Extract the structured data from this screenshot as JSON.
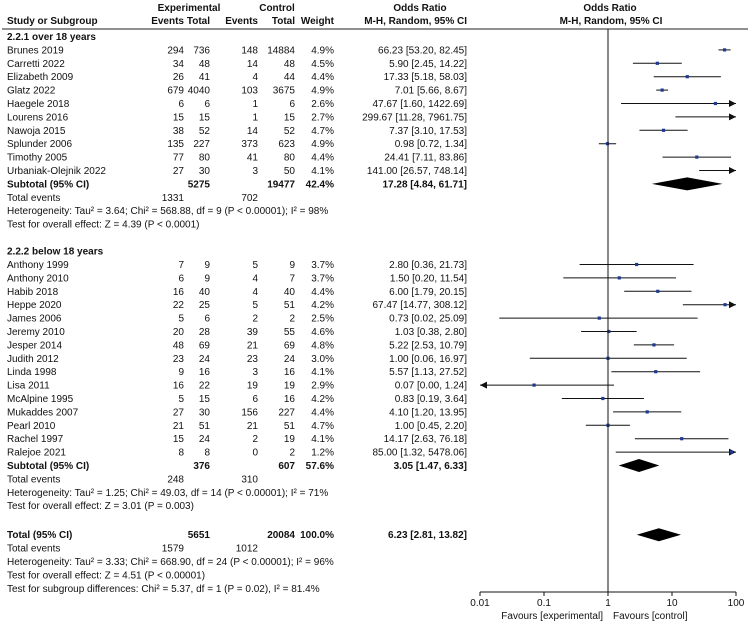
{
  "chart_data": {
    "type": "forest",
    "scale": "log",
    "xlim": [
      0.01,
      100
    ],
    "ticks": [
      "0.01",
      "0.1",
      "1",
      "10",
      "100"
    ],
    "header": {
      "group1": "Experimental",
      "group2": "Control",
      "odds_ratio_col": "Odds Ratio",
      "odds_ratio_plot": "Odds Ratio",
      "study": "Study or Subgroup",
      "events1": "Events",
      "total1": "Total",
      "events2": "Events",
      "total2": "Total",
      "weight": "Weight",
      "method_col": "M-H, Random, 95% CI",
      "method_plot": "M-H, Random, 95% CI"
    },
    "favours_left": "Favours [experimental]",
    "favours_right": "Favours [control]",
    "subgroups": [
      {
        "title": "2.2.1 over 18 years",
        "studies": [
          {
            "name": "Brunes 2019",
            "e1": "294",
            "n1": "736",
            "e2": "148",
            "n2": "14884",
            "weight": "4.9%",
            "text": "66.23 [53.20, 82.45]",
            "or": 66.23,
            "lo": 53.2,
            "hi": 82.45
          },
          {
            "name": "Carretti 2022",
            "e1": "34",
            "n1": "48",
            "e2": "14",
            "n2": "48",
            "weight": "4.5%",
            "text": "5.90 [2.45, 14.22]",
            "or": 5.9,
            "lo": 2.45,
            "hi": 14.22
          },
          {
            "name": "Elizabeth 2009",
            "e1": "26",
            "n1": "41",
            "e2": "4",
            "n2": "44",
            "weight": "4.4%",
            "text": "17.33 [5.18, 58.03]",
            "or": 17.33,
            "lo": 5.18,
            "hi": 58.03
          },
          {
            "name": "Glatz 2022",
            "e1": "679",
            "n1": "4040",
            "e2": "103",
            "n2": "3675",
            "weight": "4.9%",
            "text": "7.01 [5.66, 8.67]",
            "or": 7.01,
            "lo": 5.66,
            "hi": 8.67
          },
          {
            "name": "Haegele 2018",
            "e1": "6",
            "n1": "6",
            "e2": "1",
            "n2": "6",
            "weight": "2.6%",
            "text": "47.67 [1.60, 1422.69]",
            "or": 47.67,
            "lo": 1.6,
            "hi": 1422.69
          },
          {
            "name": "Lourens 2016",
            "e1": "15",
            "n1": "15",
            "e2": "1",
            "n2": "15",
            "weight": "2.7%",
            "text": "299.67 [11.28, 7961.75]",
            "or": 299.67,
            "lo": 11.28,
            "hi": 7961.75
          },
          {
            "name": "Nawoja 2015",
            "e1": "38",
            "n1": "52",
            "e2": "14",
            "n2": "52",
            "weight": "4.7%",
            "text": "7.37 [3.10, 17.53]",
            "or": 7.37,
            "lo": 3.1,
            "hi": 17.53
          },
          {
            "name": "Splunder 2006",
            "e1": "135",
            "n1": "227",
            "e2": "373",
            "n2": "623",
            "weight": "4.9%",
            "text": "0.98 [0.72, 1.34]",
            "or": 0.98,
            "lo": 0.72,
            "hi": 1.34
          },
          {
            "name": "Timothy 2005",
            "e1": "77",
            "n1": "80",
            "e2": "41",
            "n2": "80",
            "weight": "4.4%",
            "text": "24.41 [7.11, 83.86]",
            "or": 24.41,
            "lo": 7.11,
            "hi": 83.86
          },
          {
            "name": "Urbaniak-Olejnik 2022",
            "e1": "27",
            "n1": "30",
            "e2": "3",
            "n2": "50",
            "weight": "4.1%",
            "text": "141.00 [26.57, 748.14]",
            "or": 141.0,
            "lo": 26.57,
            "hi": 748.14
          }
        ],
        "subtotal": {
          "label": "Subtotal (95% CI)",
          "n1": "5275",
          "n2": "19477",
          "weight": "42.4%",
          "text": "17.28 [4.84, 61.71]",
          "or": 17.28,
          "lo": 4.84,
          "hi": 61.71
        },
        "total_events": {
          "label": "Total events",
          "e1": "1331",
          "e2": "702"
        },
        "heterogeneity": "Heterogeneity: Tau² = 3.64; Chi² = 568.88, df = 9 (P < 0.00001); I² = 98%",
        "overall_effect": "Test for overall effect: Z = 4.39 (P < 0.0001)"
      },
      {
        "title": "2.2.2 below 18 years",
        "studies": [
          {
            "name": "Anthony 1999",
            "e1": "7",
            "n1": "9",
            "e2": "5",
            "n2": "9",
            "weight": "3.7%",
            "text": "2.80 [0.36, 21.73]",
            "or": 2.8,
            "lo": 0.36,
            "hi": 21.73
          },
          {
            "name": "Anthony 2010",
            "e1": "6",
            "n1": "9",
            "e2": "4",
            "n2": "7",
            "weight": "3.7%",
            "text": "1.50 [0.20, 11.54]",
            "or": 1.5,
            "lo": 0.2,
            "hi": 11.54
          },
          {
            "name": "Habib 2018",
            "e1": "16",
            "n1": "40",
            "e2": "4",
            "n2": "40",
            "weight": "4.4%",
            "text": "6.00 [1.79, 20.15]",
            "or": 6.0,
            "lo": 1.79,
            "hi": 20.15
          },
          {
            "name": "Heppe 2020",
            "e1": "22",
            "n1": "25",
            "e2": "5",
            "n2": "51",
            "weight": "4.2%",
            "text": "67.47 [14.77, 308.12]",
            "or": 67.47,
            "lo": 14.77,
            "hi": 308.12
          },
          {
            "name": "James 2006",
            "e1": "5",
            "n1": "6",
            "e2": "2",
            "n2": "2",
            "weight": "2.5%",
            "text": "0.73 [0.02, 25.09]",
            "or": 0.73,
            "lo": 0.02,
            "hi": 25.09
          },
          {
            "name": "Jeremy 2010",
            "e1": "20",
            "n1": "28",
            "e2": "39",
            "n2": "55",
            "weight": "4.6%",
            "text": "1.03 [0.38, 2.80]",
            "or": 1.03,
            "lo": 0.38,
            "hi": 2.8
          },
          {
            "name": "Jesper 2014",
            "e1": "48",
            "n1": "69",
            "e2": "21",
            "n2": "69",
            "weight": "4.8%",
            "text": "5.22 [2.53, 10.79]",
            "or": 5.22,
            "lo": 2.53,
            "hi": 10.79
          },
          {
            "name": "Judith 2012",
            "e1": "23",
            "n1": "24",
            "e2": "23",
            "n2": "24",
            "weight": "3.0%",
            "text": "1.00 [0.06, 16.97]",
            "or": 1.0,
            "lo": 0.06,
            "hi": 16.97
          },
          {
            "name": "Linda 1998",
            "e1": "9",
            "n1": "16",
            "e2": "3",
            "n2": "16",
            "weight": "4.1%",
            "text": "5.57 [1.13, 27.52]",
            "or": 5.57,
            "lo": 1.13,
            "hi": 27.52
          },
          {
            "name": "Lisa 2011",
            "e1": "16",
            "n1": "22",
            "e2": "19",
            "n2": "19",
            "weight": "2.9%",
            "text": "0.07 [0.00, 1.24]",
            "or": 0.07,
            "lo": 0.004,
            "hi": 1.24
          },
          {
            "name": "McAlpine 1995",
            "e1": "5",
            "n1": "15",
            "e2": "6",
            "n2": "16",
            "weight": "4.2%",
            "text": "0.83 [0.19, 3.64]",
            "or": 0.83,
            "lo": 0.19,
            "hi": 3.64
          },
          {
            "name": "Mukaddes 2007",
            "e1": "27",
            "n1": "30",
            "e2": "156",
            "n2": "227",
            "weight": "4.4%",
            "text": "4.10 [1.20, 13.95]",
            "or": 4.1,
            "lo": 1.2,
            "hi": 13.95
          },
          {
            "name": "Pearl 2010",
            "e1": "21",
            "n1": "51",
            "e2": "21",
            "n2": "51",
            "weight": "4.7%",
            "text": "1.00 [0.45, 2.20]",
            "or": 1.0,
            "lo": 0.45,
            "hi": 2.2
          },
          {
            "name": "Rachel 1997",
            "e1": "15",
            "n1": "24",
            "e2": "2",
            "n2": "19",
            "weight": "4.1%",
            "text": "14.17 [2.63, 76.18]",
            "or": 14.17,
            "lo": 2.63,
            "hi": 76.18
          },
          {
            "name": "Ralejoe 2021",
            "e1": "8",
            "n1": "8",
            "e2": "0",
            "n2": "2",
            "weight": "1.2%",
            "text": "85.00 [1.32, 5478.06]",
            "or": 85.0,
            "lo": 1.32,
            "hi": 5478.06
          }
        ],
        "subtotal": {
          "label": "Subtotal (95% CI)",
          "n1": "376",
          "n2": "607",
          "weight": "57.6%",
          "text": "3.05 [1.47, 6.33]",
          "or": 3.05,
          "lo": 1.47,
          "hi": 6.33
        },
        "total_events": {
          "label": "Total events",
          "e1": "248",
          "e2": "310"
        },
        "heterogeneity": "Heterogeneity: Tau² = 1.25; Chi² = 49.03, df = 14 (P < 0.00001); I² = 71%",
        "overall_effect": "Test for overall effect: Z = 3.01 (P = 0.003)"
      }
    ],
    "total": {
      "label": "Total (95% CI)",
      "n1": "5651",
      "n2": "20084",
      "weight": "100.0%",
      "text": "6.23 [2.81, 13.82]",
      "or": 6.23,
      "lo": 2.81,
      "hi": 13.82
    },
    "total_events": {
      "label": "Total events",
      "e1": "1579",
      "e2": "1012"
    },
    "heterogeneity": "Heterogeneity: Tau² = 3.33; Chi² = 668.90, df = 24 (P < 0.00001); I² = 96%",
    "overall_effect": "Test for overall effect: Z = 4.51 (P < 0.00001)",
    "subgroup_differences": "Test for subgroup differences: Chi² = 5.37, df = 1 (P = 0.02), I² = 81.4%"
  }
}
